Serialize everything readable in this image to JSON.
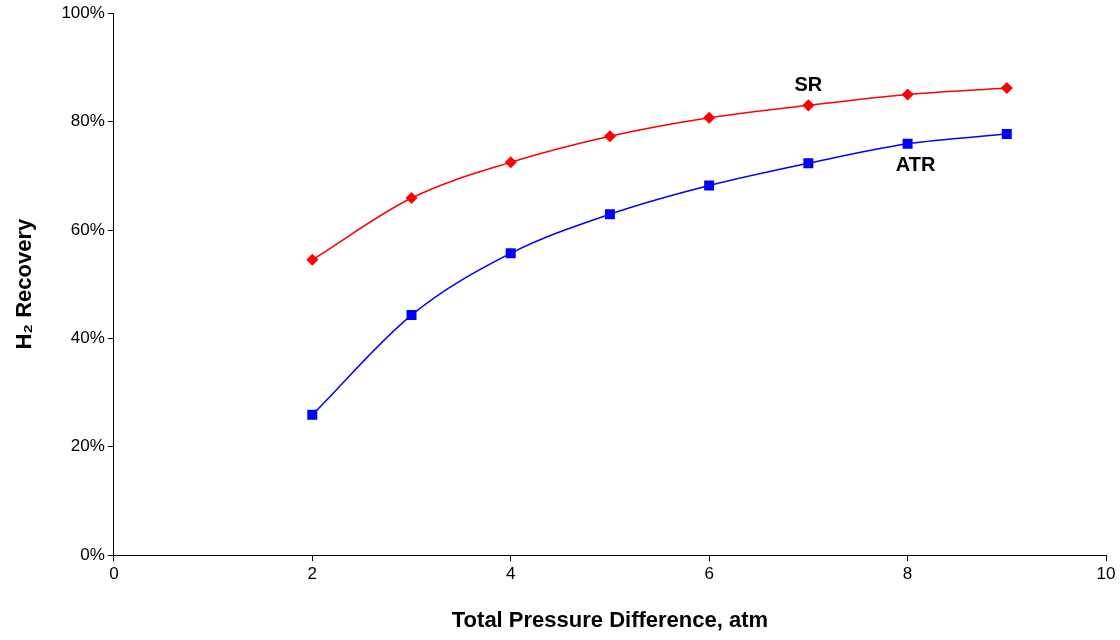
{
  "chart_data": {
    "type": "line",
    "xlabel": "Total Pressure Difference, atm",
    "ylabel": "H₂ Recovery",
    "x": [
      2,
      3,
      4,
      5,
      6,
      7,
      8,
      9
    ],
    "series": [
      {
        "name": "SR",
        "color": "#ff0000",
        "marker": "diamond",
        "values": [
          54.5,
          65.9,
          72.5,
          77.3,
          80.7,
          83.0,
          85.0,
          86.2
        ]
      },
      {
        "name": "ATR",
        "color": "#0000ff",
        "marker": "square",
        "values": [
          25.9,
          44.3,
          55.7,
          62.9,
          68.2,
          72.3,
          75.9,
          77.7
        ]
      }
    ],
    "xlim": [
      0,
      10
    ],
    "xticks": [
      0,
      2,
      4,
      6,
      8,
      10
    ],
    "ylim": [
      0,
      100
    ],
    "yticks": [
      {
        "value": 0,
        "label": "0%"
      },
      {
        "value": 20,
        "label": "20%"
      },
      {
        "value": 40,
        "label": "40%"
      },
      {
        "value": 60,
        "label": "60%"
      },
      {
        "value": 80,
        "label": "80%"
      },
      {
        "value": 100,
        "label": "100%"
      }
    ],
    "grid": false,
    "legend": false
  }
}
